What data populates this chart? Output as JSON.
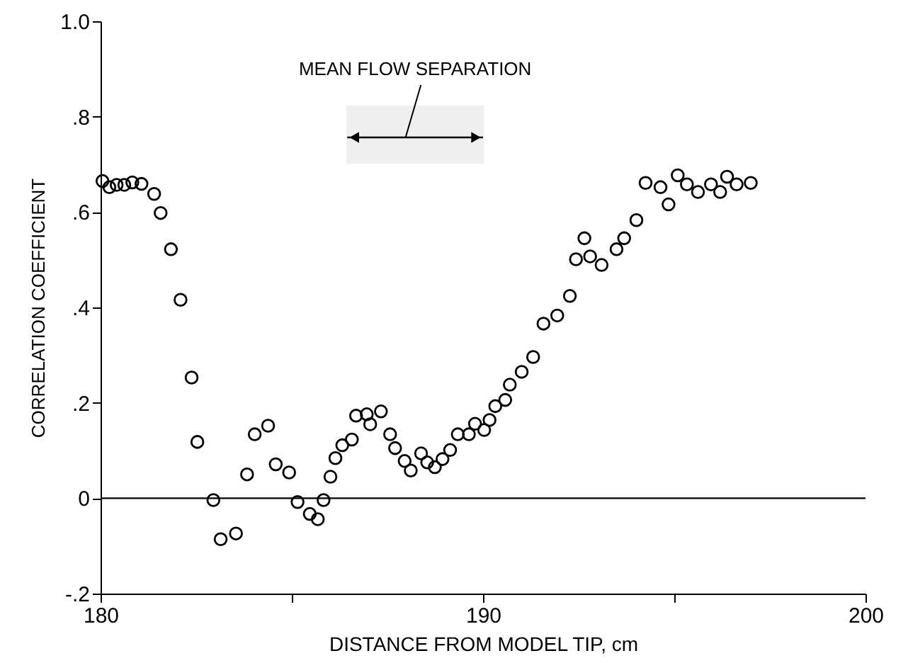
{
  "chart_data": {
    "type": "scatter",
    "xlabel": "DISTANCE FROM MODEL TIP, cm",
    "ylabel": "CORRELATION COEFFICIENT",
    "x": [
      180.05,
      180.23,
      180.42,
      180.62,
      180.83,
      181.07,
      181.4,
      181.57,
      181.84,
      182.09,
      182.38,
      182.53,
      182.95,
      183.14,
      183.54,
      183.83,
      184.03,
      184.38,
      184.58,
      184.93,
      185.15,
      185.47,
      185.68,
      185.83,
      186.01,
      186.14,
      186.32,
      186.57,
      186.68,
      186.96,
      187.05,
      187.33,
      187.57,
      187.7,
      187.95,
      188.11,
      188.38,
      188.54,
      188.74,
      188.94,
      189.14,
      189.34,
      189.63,
      189.79,
      190.03,
      190.17,
      190.32,
      190.58,
      190.7,
      191.01,
      191.31,
      191.58,
      191.94,
      192.27,
      192.43,
      192.65,
      192.8,
      193.1,
      193.49,
      193.69,
      194.01,
      194.25,
      194.64,
      194.85,
      195.09,
      195.33,
      195.62,
      195.96,
      196.2,
      196.38,
      196.63,
      197.0
    ],
    "series": [
      {
        "color": "#000000",
        "values": [
          0.665,
          0.652,
          0.657,
          0.657,
          0.662,
          0.659,
          0.638,
          0.598,
          0.522,
          0.416,
          0.253,
          0.118,
          -0.004,
          -0.086,
          -0.074,
          0.05,
          0.134,
          0.152,
          0.071,
          0.054,
          -0.008,
          -0.033,
          -0.044,
          -0.004,
          0.045,
          0.084,
          0.111,
          0.123,
          0.173,
          0.176,
          0.155,
          0.182,
          0.134,
          0.105,
          0.078,
          0.058,
          0.094,
          0.075,
          0.065,
          0.082,
          0.101,
          0.134,
          0.134,
          0.156,
          0.143,
          0.164,
          0.193,
          0.206,
          0.238,
          0.265,
          0.296,
          0.366,
          0.383,
          0.424,
          0.501,
          0.545,
          0.507,
          0.489,
          0.522,
          0.545,
          0.583,
          0.661,
          0.652,
          0.616,
          0.677,
          0.658,
          0.642,
          0.658,
          0.642,
          0.674,
          0.658,
          0.661
        ]
      }
    ],
    "xlim": [
      180,
      200
    ],
    "ylim": [
      -0.2,
      1.0
    ],
    "xticks": [
      180,
      {
        "value": 185,
        "label": null
      },
      190,
      {
        "value": 195,
        "label": null
      },
      200
    ],
    "yticks": [
      {
        "value": -0.2,
        "label": "-.2"
      },
      0,
      {
        "value": 0.2,
        "label": ".2"
      },
      {
        "value": 0.4,
        "label": ".4"
      },
      {
        "value": 0.6,
        "label": ".6"
      },
      {
        "value": 0.8,
        "label": ".8"
      },
      {
        "value": 1.0,
        "label": "1.0"
      }
    ],
    "ref_lines": [
      {
        "axis": "y",
        "value": 0,
        "color": "#000000"
      }
    ],
    "bands": [
      {
        "axis": "x",
        "from": 186.45,
        "to": 190.0,
        "label": "MEAN FLOW SEPARATION"
      }
    ],
    "marker": "circle",
    "grid": false
  }
}
